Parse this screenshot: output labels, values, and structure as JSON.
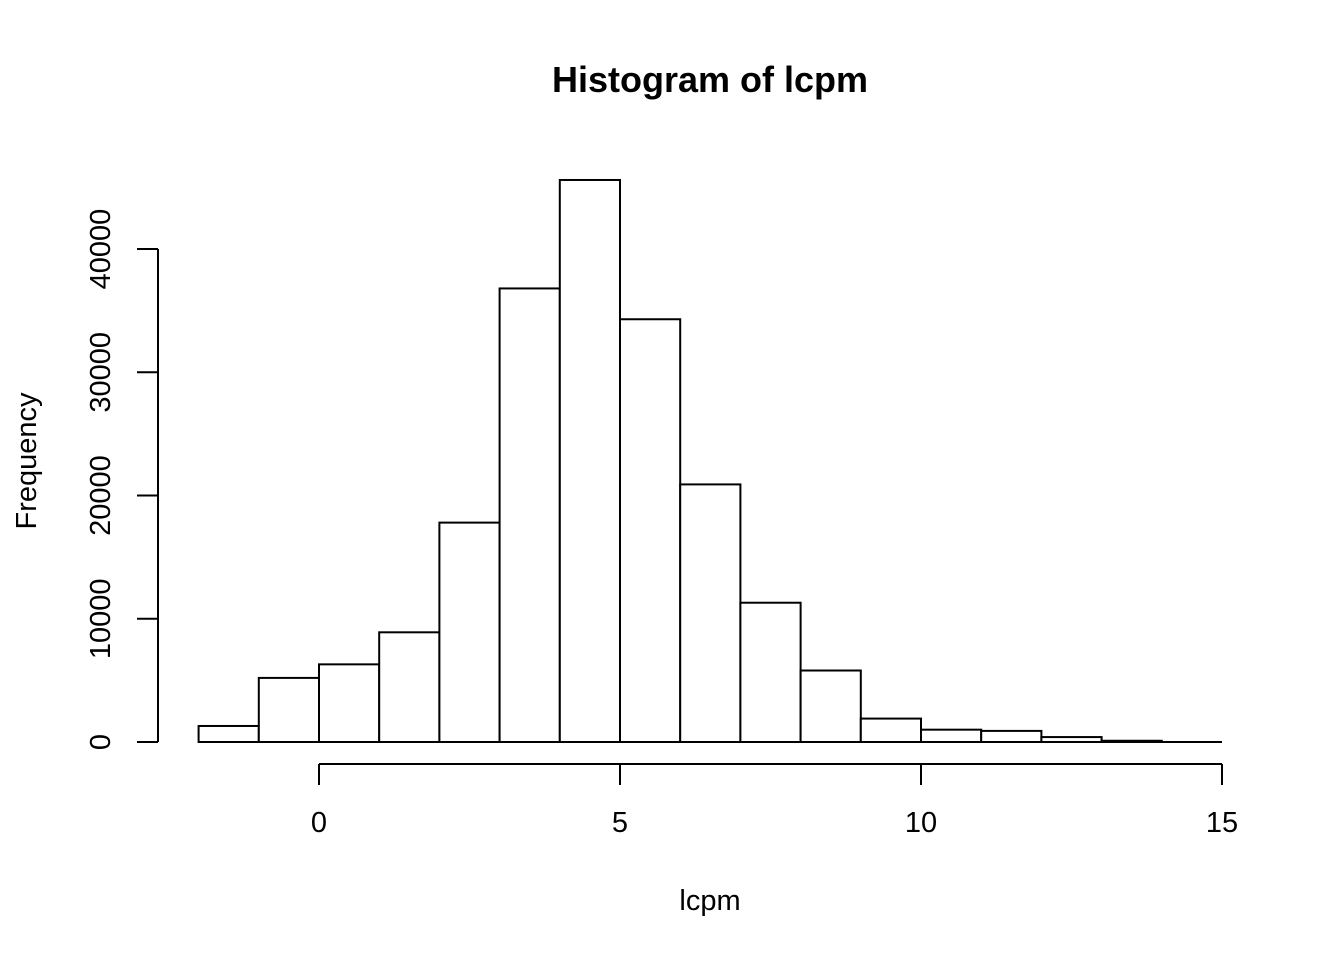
{
  "chart_data": {
    "type": "bar",
    "title": "Histogram of lcpm",
    "xlabel": "lcpm",
    "ylabel": "Frequency",
    "bin_edges": [
      -2,
      -1,
      0,
      1,
      2,
      3,
      4,
      5,
      6,
      7,
      8,
      9,
      10,
      11,
      12,
      13,
      14,
      15
    ],
    "values": [
      1300,
      5200,
      6300,
      8900,
      17800,
      36800,
      45600,
      34300,
      20900,
      11300,
      5800,
      1900,
      1000,
      900,
      400,
      100,
      0
    ],
    "xlim": [
      -2,
      15
    ],
    "ylim": [
      0,
      45600
    ],
    "x_ticks": [
      0,
      5,
      10,
      15
    ],
    "y_ticks": [
      0,
      10000,
      20000,
      30000,
      40000
    ],
    "grid": false,
    "fill_color": "#ffffff",
    "stroke_color": "#000000"
  }
}
